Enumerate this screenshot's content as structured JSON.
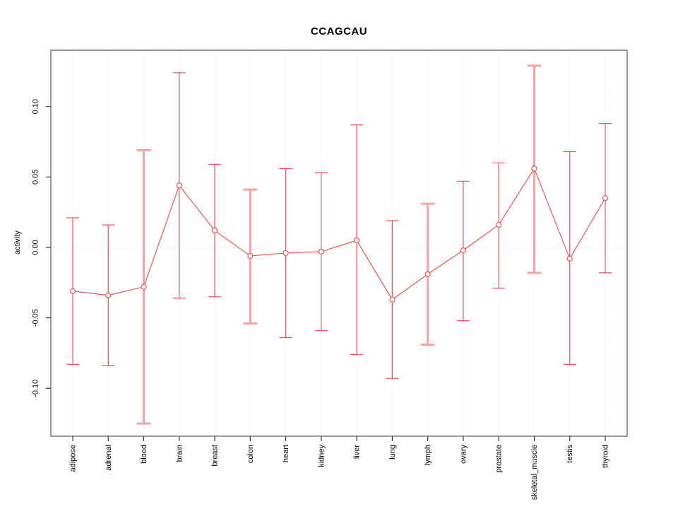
{
  "title": "CCAGCAU",
  "chart_data": {
    "type": "line",
    "title": "CCAGCAU",
    "xlabel": "",
    "ylabel": "activity",
    "legend": "none",
    "grid": "vertical-dotted-plus-zero-line",
    "categories": [
      "adipose",
      "adrenal",
      "blood",
      "brain",
      "breast",
      "colon",
      "heart",
      "kidney",
      "liver",
      "lung",
      "lymph",
      "ovary",
      "prostate",
      "skeletal_muscle",
      "testis",
      "thyroid"
    ],
    "series": [
      {
        "name": "activity",
        "values": [
          -0.031,
          -0.034,
          -0.028,
          0.044,
          0.012,
          -0.006,
          -0.004,
          -0.003,
          0.005,
          -0.037,
          -0.019,
          -0.002,
          0.016,
          0.056,
          -0.008,
          0.035
        ]
      }
    ],
    "error_low": [
      -0.083,
      -0.084,
      -0.125,
      -0.036,
      -0.035,
      -0.054,
      -0.064,
      -0.059,
      -0.076,
      -0.093,
      -0.069,
      -0.052,
      -0.029,
      -0.018,
      -0.083,
      -0.018
    ],
    "error_high": [
      0.021,
      0.016,
      0.069,
      0.124,
      0.059,
      0.041,
      0.056,
      0.053,
      0.087,
      0.019,
      0.031,
      0.047,
      0.06,
      0.129,
      0.068,
      0.088
    ],
    "thick_categories": [
      "blood",
      "colon",
      "lymph",
      "skeletal_muscle"
    ],
    "y_ticks": [
      -0.1,
      -0.05,
      0.0,
      0.05,
      0.1
    ],
    "y_tick_labels": [
      "-0.10",
      "-0.05",
      "0.00",
      "0.05",
      "0.10"
    ],
    "ylim": [
      -0.134,
      0.14
    ],
    "marker": "open-circle",
    "colors": {
      "line": "#ee5252",
      "thick_bar": "#f8a2a2",
      "grid": "#d9d9d9",
      "border": "#555555",
      "tick": "#333333",
      "text": "#000000"
    }
  }
}
